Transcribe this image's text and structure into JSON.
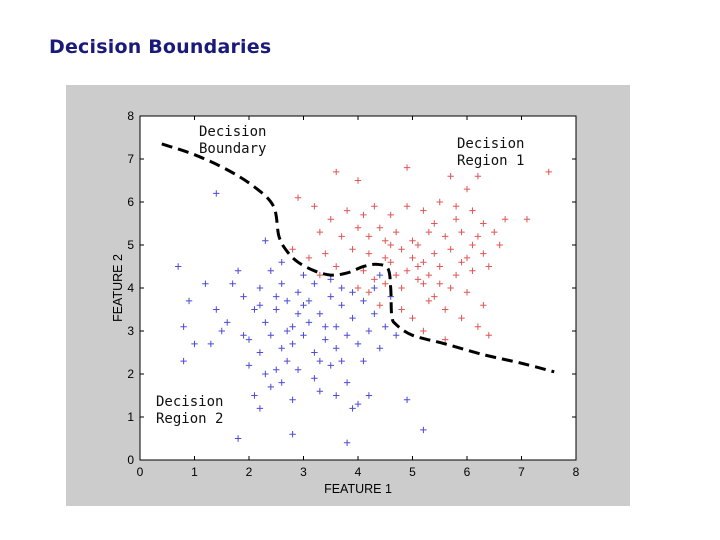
{
  "slide": {
    "title": "Decision Boundaries"
  },
  "chart_data": {
    "type": "scatter",
    "xlabel": "FEATURE 1",
    "ylabel": "FEATURE 2",
    "xlim": [
      0,
      8
    ],
    "ylim": [
      0,
      8
    ],
    "xticks": [
      "0",
      "1",
      "2",
      "3",
      "4",
      "5",
      "6",
      "7",
      "8"
    ],
    "yticks": [
      "0",
      "1",
      "2",
      "3",
      "4",
      "5",
      "6",
      "7",
      "8"
    ],
    "grid": false,
    "marker": "+",
    "annotations": {
      "boundary": [
        "Decision",
        "Boundary"
      ],
      "region1": [
        "Decision",
        "Region 1"
      ],
      "region2": [
        "Decision",
        "Region 2"
      ]
    },
    "boundary_curve": {
      "style": "dashed",
      "color": "#000000",
      "x": [
        0.4,
        1.0,
        1.6,
        2.1,
        2.45,
        2.55,
        2.7,
        2.9,
        3.2,
        3.5,
        3.8,
        4.1,
        4.35,
        4.55,
        4.6,
        4.62,
        4.7,
        5.0,
        5.6,
        6.3,
        7.0,
        7.6
      ],
      "y": [
        7.35,
        7.1,
        6.75,
        6.35,
        5.9,
        5.2,
        4.85,
        4.6,
        4.4,
        4.3,
        4.35,
        4.5,
        4.55,
        4.45,
        4.0,
        3.35,
        3.15,
        2.9,
        2.7,
        2.45,
        2.25,
        2.05
      ]
    },
    "series": [
      {
        "color": "#e05555",
        "points": [
          [
            3.6,
            6.7
          ],
          [
            4.0,
            6.5
          ],
          [
            4.9,
            6.8
          ],
          [
            5.7,
            6.6
          ],
          [
            6.2,
            6.6
          ],
          [
            7.5,
            6.7
          ],
          [
            2.9,
            6.1
          ],
          [
            3.2,
            5.9
          ],
          [
            3.5,
            5.6
          ],
          [
            3.8,
            5.8
          ],
          [
            4.1,
            5.7
          ],
          [
            4.3,
            5.9
          ],
          [
            4.6,
            5.7
          ],
          [
            4.9,
            5.9
          ],
          [
            5.2,
            5.8
          ],
          [
            5.5,
            6.0
          ],
          [
            5.8,
            5.9
          ],
          [
            6.1,
            5.8
          ],
          [
            6.3,
            5.5
          ],
          [
            7.1,
            5.6
          ],
          [
            3.3,
            5.3
          ],
          [
            3.7,
            5.2
          ],
          [
            4.0,
            5.4
          ],
          [
            4.2,
            5.2
          ],
          [
            4.4,
            5.4
          ],
          [
            4.7,
            5.3
          ],
          [
            5.0,
            5.1
          ],
          [
            5.3,
            5.3
          ],
          [
            5.6,
            5.2
          ],
          [
            5.9,
            5.3
          ],
          [
            6.2,
            5.2
          ],
          [
            6.5,
            5.3
          ],
          [
            2.8,
            4.9
          ],
          [
            3.1,
            4.7
          ],
          [
            3.4,
            4.8
          ],
          [
            3.9,
            4.9
          ],
          [
            4.2,
            4.8
          ],
          [
            4.5,
            4.7
          ],
          [
            4.8,
            4.9
          ],
          [
            5.1,
            5.0
          ],
          [
            5.4,
            4.8
          ],
          [
            5.7,
            4.9
          ],
          [
            6.0,
            4.7
          ],
          [
            6.3,
            4.8
          ],
          [
            4.1,
            4.4
          ],
          [
            4.3,
            4.2
          ],
          [
            4.6,
            4.6
          ],
          [
            4.9,
            4.4
          ],
          [
            5.2,
            4.6
          ],
          [
            5.5,
            4.5
          ],
          [
            5.8,
            4.3
          ],
          [
            6.1,
            4.4
          ],
          [
            6.4,
            4.5
          ],
          [
            4.0,
            4.0
          ],
          [
            4.2,
            3.9
          ],
          [
            4.5,
            4.1
          ],
          [
            4.8,
            4.0
          ],
          [
            5.1,
            4.2
          ],
          [
            5.4,
            3.8
          ],
          [
            5.7,
            4.0
          ],
          [
            6.0,
            3.9
          ],
          [
            6.3,
            3.6
          ],
          [
            4.4,
            3.6
          ],
          [
            4.8,
            3.5
          ],
          [
            5.0,
            3.3
          ],
          [
            5.3,
            3.7
          ],
          [
            5.6,
            3.5
          ],
          [
            5.9,
            3.3
          ],
          [
            6.2,
            3.1
          ],
          [
            5.2,
            3.0
          ],
          [
            5.6,
            2.8
          ],
          [
            6.4,
            2.9
          ],
          [
            5.1,
            4.5
          ],
          [
            5.3,
            4.3
          ],
          [
            5.0,
            4.7
          ],
          [
            4.6,
            5.0
          ],
          [
            5.9,
            4.6
          ],
          [
            6.6,
            5.0
          ],
          [
            6.7,
            5.6
          ],
          [
            6.0,
            6.3
          ],
          [
            5.4,
            5.5
          ],
          [
            3.3,
            4.3
          ],
          [
            3.6,
            4.5
          ],
          [
            4.7,
            4.3
          ],
          [
            5.2,
            4.1
          ],
          [
            5.5,
            4.1
          ],
          [
            6.1,
            5.0
          ],
          [
            4.5,
            5.1
          ],
          [
            5.8,
            5.6
          ]
        ]
      },
      {
        "color": "#4b4bd6",
        "points": [
          [
            0.7,
            4.5
          ],
          [
            1.4,
            6.2
          ],
          [
            2.3,
            5.1
          ],
          [
            1.8,
            4.4
          ],
          [
            0.9,
            3.7
          ],
          [
            1.2,
            4.1
          ],
          [
            0.8,
            3.1
          ],
          [
            1.0,
            2.7
          ],
          [
            0.8,
            2.3
          ],
          [
            1.4,
            3.5
          ],
          [
            1.6,
            3.2
          ],
          [
            1.3,
            2.7
          ],
          [
            1.7,
            4.1
          ],
          [
            1.9,
            3.8
          ],
          [
            2.1,
            3.5
          ],
          [
            2.3,
            3.2
          ],
          [
            2.5,
            3.5
          ],
          [
            2.7,
            3.0
          ],
          [
            2.9,
            3.4
          ],
          [
            3.1,
            3.7
          ],
          [
            3.3,
            3.4
          ],
          [
            3.5,
            3.8
          ],
          [
            3.7,
            3.6
          ],
          [
            3.9,
            3.3
          ],
          [
            4.1,
            3.7
          ],
          [
            4.3,
            3.4
          ],
          [
            2.0,
            2.8
          ],
          [
            2.2,
            2.5
          ],
          [
            2.4,
            2.9
          ],
          [
            2.6,
            2.6
          ],
          [
            2.8,
            2.7
          ],
          [
            3.0,
            2.9
          ],
          [
            3.2,
            2.5
          ],
          [
            3.4,
            2.8
          ],
          [
            3.6,
            2.6
          ],
          [
            3.8,
            2.9
          ],
          [
            4.0,
            2.7
          ],
          [
            4.2,
            3.0
          ],
          [
            4.4,
            2.6
          ],
          [
            4.7,
            2.9
          ],
          [
            2.0,
            2.2
          ],
          [
            2.3,
            2.0
          ],
          [
            2.6,
            1.8
          ],
          [
            2.9,
            2.1
          ],
          [
            3.2,
            1.9
          ],
          [
            3.5,
            2.2
          ],
          [
            3.8,
            1.8
          ],
          [
            4.1,
            2.3
          ],
          [
            2.1,
            1.5
          ],
          [
            2.4,
            1.7
          ],
          [
            2.8,
            1.4
          ],
          [
            3.3,
            1.6
          ],
          [
            3.6,
            1.5
          ],
          [
            4.0,
            1.3
          ],
          [
            2.2,
            1.2
          ],
          [
            3.9,
            1.2
          ],
          [
            4.2,
            1.5
          ],
          [
            4.9,
            1.4
          ],
          [
            1.8,
            0.5
          ],
          [
            2.8,
            0.6
          ],
          [
            3.8,
            0.4
          ],
          [
            5.2,
            0.7
          ],
          [
            2.6,
            4.1
          ],
          [
            2.9,
            3.9
          ],
          [
            3.2,
            4.1
          ],
          [
            3.5,
            4.2
          ],
          [
            3.7,
            4.0
          ],
          [
            4.3,
            4.0
          ],
          [
            2.4,
            4.4
          ],
          [
            2.7,
            3.7
          ],
          [
            3.1,
            3.2
          ],
          [
            3.4,
            3.1
          ],
          [
            3.6,
            3.1
          ],
          [
            2.5,
            3.8
          ],
          [
            2.2,
            4.0
          ],
          [
            3.0,
            3.6
          ],
          [
            2.8,
            3.1
          ],
          [
            3.3,
            2.3
          ],
          [
            2.7,
            2.3
          ],
          [
            4.5,
            3.1
          ],
          [
            1.5,
            3.0
          ],
          [
            1.9,
            2.9
          ],
          [
            4.6,
            3.8
          ],
          [
            3.9,
            3.9
          ],
          [
            2.6,
            4.6
          ],
          [
            3.0,
            4.3
          ],
          [
            4.4,
            4.3
          ],
          [
            2.2,
            3.6
          ],
          [
            3.7,
            2.3
          ],
          [
            2.5,
            2.1
          ]
        ]
      }
    ]
  }
}
